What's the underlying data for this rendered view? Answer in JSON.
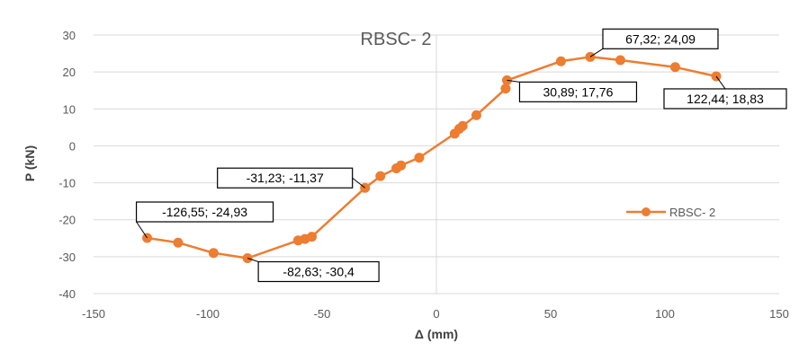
{
  "chart_data": {
    "type": "scatter",
    "title": "RBSC- 2",
    "xlabel": "Δ (mm)",
    "ylabel": "P (kN)",
    "xlim": [
      -150,
      150
    ],
    "ylim": [
      -40,
      30
    ],
    "x_ticks": [
      "-150",
      "-100",
      "-50",
      "0",
      "50",
      "100",
      "150"
    ],
    "y_ticks": [
      "-40",
      "-30",
      "-20",
      "-10",
      "0",
      "10",
      "20",
      "30"
    ],
    "grid": "horizontal",
    "legend_position": "right",
    "series": [
      {
        "name": "RBSC- 2",
        "color": "#ED7D31",
        "x": [
          -126.55,
          -113,
          -97.5,
          -82.63,
          -60.5,
          -57.5,
          -54.5,
          -31.23,
          -24.5,
          -17.5,
          -15.5,
          -7.5,
          8,
          10,
          11.5,
          17.5,
          30.3,
          30.89,
          54.5,
          67.32,
          80.5,
          104.5,
          122.44
        ],
        "y": [
          -24.93,
          -26.2,
          -29,
          -30.4,
          -25.6,
          -25.2,
          -24.6,
          -11.37,
          -8.2,
          -6.1,
          -5.3,
          -3.2,
          3.3,
          4.6,
          5.4,
          8.3,
          15.5,
          17.76,
          22.9,
          24.09,
          23.2,
          21.3,
          18.83
        ]
      }
    ],
    "annotations": [
      {
        "text": "67,32; 24,09",
        "x": 67.32,
        "y": 24.09
      },
      {
        "text": "30,89; 17,76",
        "x": 30.89,
        "y": 17.76
      },
      {
        "text": "122,44; 18,83",
        "x": 122.44,
        "y": 18.83
      },
      {
        "text": "-31,23; -11,37",
        "x": -31.23,
        "y": -11.37
      },
      {
        "text": "-126,55; -24,93",
        "x": -126.55,
        "y": -24.93
      },
      {
        "text": "-82,63; -30,4",
        "x": -82.63,
        "y": -30.4
      }
    ]
  }
}
